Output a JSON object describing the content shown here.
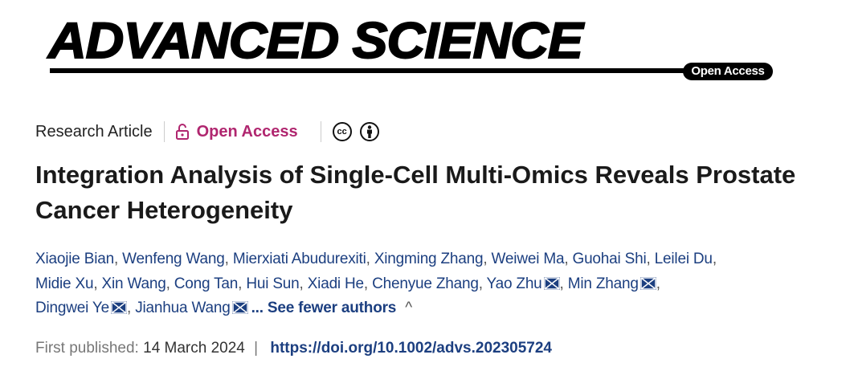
{
  "journal": {
    "name": "ADVANCED SCIENCE",
    "badge": "Open Access"
  },
  "meta": {
    "article_type": "Research Article",
    "access": "Open Access",
    "license_icons": [
      "creative-commons-icon",
      "attribution-icon"
    ],
    "cc_text": "cc"
  },
  "title": "Integration Analysis of Single-Cell Multi-Omics Reveals Prostate Cancer Heterogeneity",
  "authors": {
    "lines": [
      [
        {
          "name": "Xiaojie Bian"
        },
        {
          "name": "Wenfeng Wang"
        },
        {
          "name": "Mierxiati Abudurexiti"
        },
        {
          "name": "Xingming Zhang"
        },
        {
          "name": "Weiwei Ma"
        },
        {
          "name": "Guohai Shi"
        },
        {
          "name": "Leilei Du",
          "trail": true
        }
      ],
      [
        {
          "name": "Midie Xu"
        },
        {
          "name": "Xin Wang"
        },
        {
          "name": "Cong Tan"
        },
        {
          "name": "Hui Sun"
        },
        {
          "name": "Xiadi He"
        },
        {
          "name": "Chenyue Zhang"
        },
        {
          "name": "Yao Zhu",
          "mail": true
        },
        {
          "name": "Min Zhang",
          "mail": true,
          "trail": true
        }
      ],
      [
        {
          "name": "Dingwei Ye",
          "mail": true
        },
        {
          "name": "Jianhua Wang",
          "mail": true,
          "last": true
        }
      ]
    ],
    "toggle": "... See fewer authors",
    "toggle_icon": "^"
  },
  "published": {
    "label": "First published:",
    "date": "14 March 2024",
    "separator": "|",
    "doi": "https://doi.org/10.1002/advs.202305724"
  },
  "colors": {
    "link": "#1c3f80",
    "open_access": "#b0266f"
  }
}
